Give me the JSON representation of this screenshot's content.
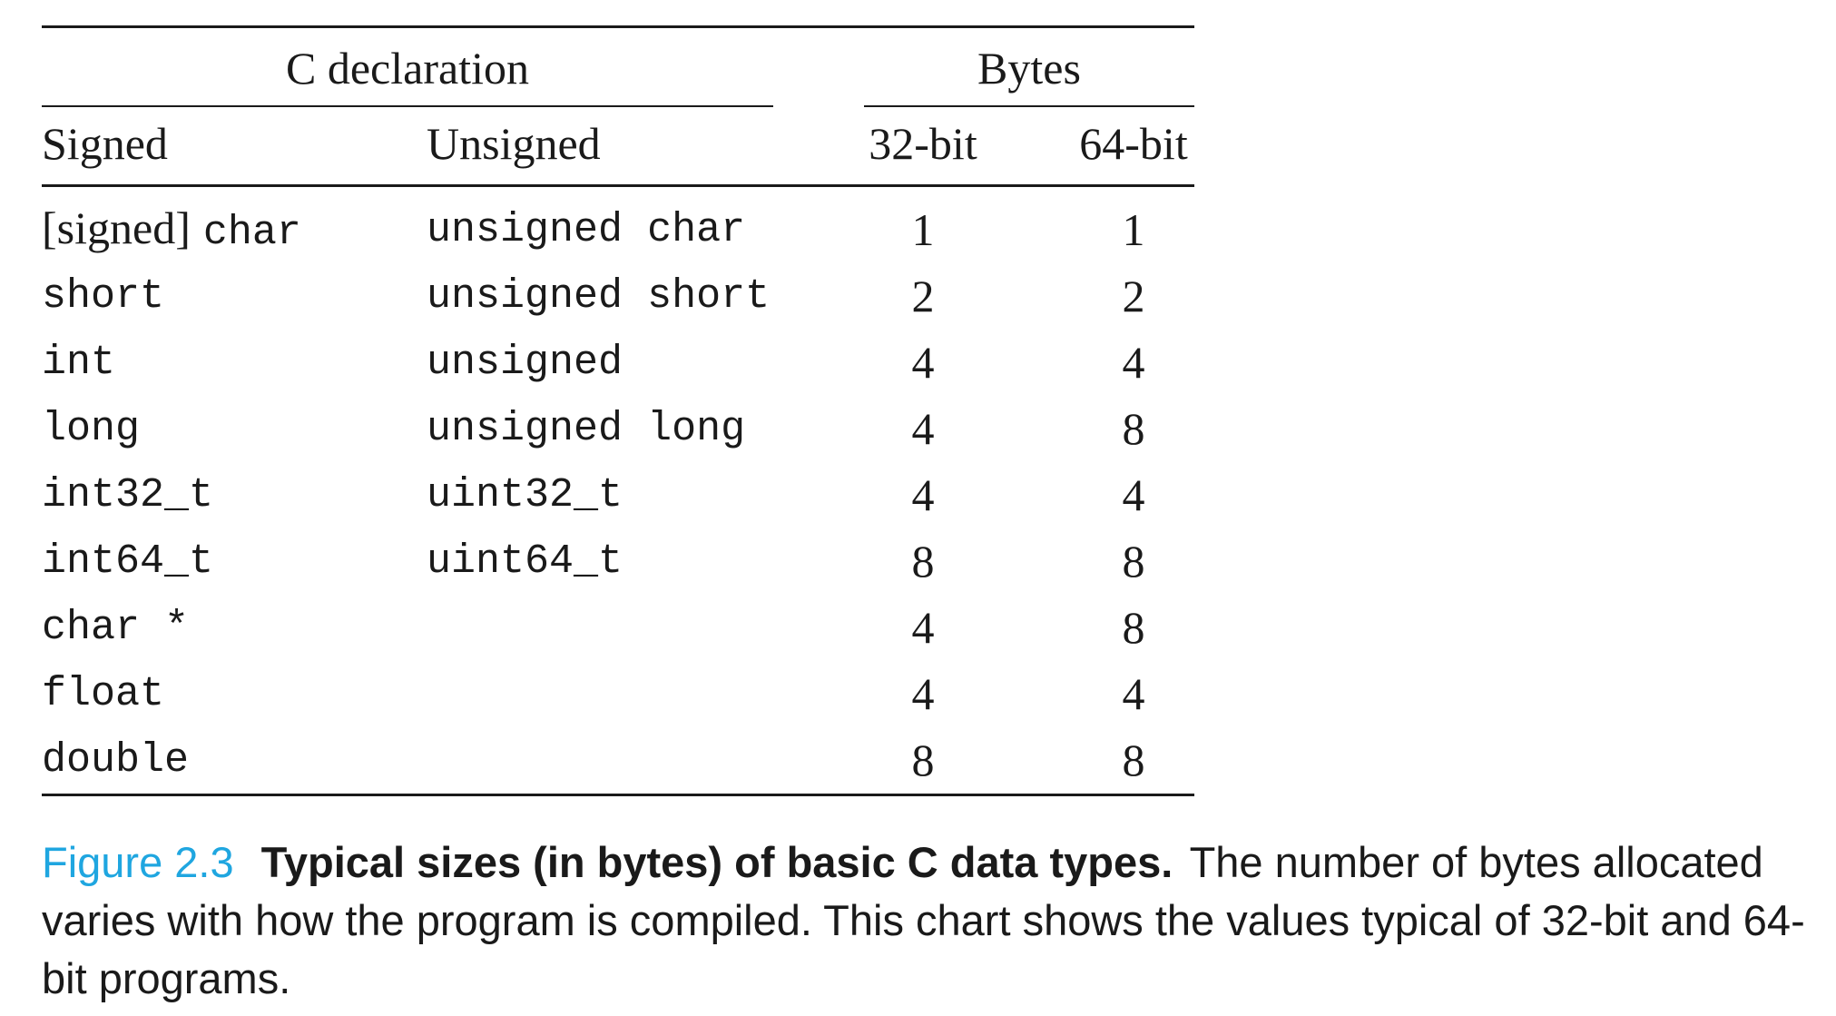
{
  "table": {
    "group_headers": {
      "c_declaration": "C declaration",
      "bytes": "Bytes"
    },
    "column_headers": [
      "Signed",
      "Unsigned",
      "32-bit",
      "64-bit"
    ],
    "rows": [
      {
        "signed_bracket": "[signed]",
        "signed": "char",
        "unsigned_1": "unsigned",
        "unsigned_2": "char",
        "b32": "1",
        "b64": "1"
      },
      {
        "signed_bracket": "",
        "signed": "short",
        "unsigned_1": "unsigned",
        "unsigned_2": "short",
        "b32": "2",
        "b64": "2"
      },
      {
        "signed_bracket": "",
        "signed": "int",
        "unsigned_1": "unsigned",
        "unsigned_2": "",
        "b32": "4",
        "b64": "4"
      },
      {
        "signed_bracket": "",
        "signed": "long",
        "unsigned_1": "unsigned",
        "unsigned_2": "long",
        "b32": "4",
        "b64": "8"
      },
      {
        "signed_bracket": "",
        "signed": "int32_t",
        "unsigned_1": "uint32_t",
        "unsigned_2": "",
        "b32": "4",
        "b64": "4"
      },
      {
        "signed_bracket": "",
        "signed": "int64_t",
        "unsigned_1": "uint64_t",
        "unsigned_2": "",
        "b32": "8",
        "b64": "8"
      },
      {
        "signed_bracket": "",
        "signed": "char *",
        "unsigned_1": "",
        "unsigned_2": "",
        "b32": "4",
        "b64": "8"
      },
      {
        "signed_bracket": "",
        "signed": "float",
        "unsigned_1": "",
        "unsigned_2": "",
        "b32": "4",
        "b64": "4"
      },
      {
        "signed_bracket": "",
        "signed": "double",
        "unsigned_1": "",
        "unsigned_2": "",
        "b32": "8",
        "b64": "8"
      }
    ]
  },
  "caption": {
    "label": "Figure 2.3",
    "title": "Typical sizes (in bytes) of basic C data types.",
    "text": "The number of bytes allocated varies with how the program is compiled. This chart shows the values typical of 32-bit and 64-bit programs."
  },
  "colors": {
    "figure_label": "#1fa6e0",
    "text": "#1a1a1a"
  }
}
